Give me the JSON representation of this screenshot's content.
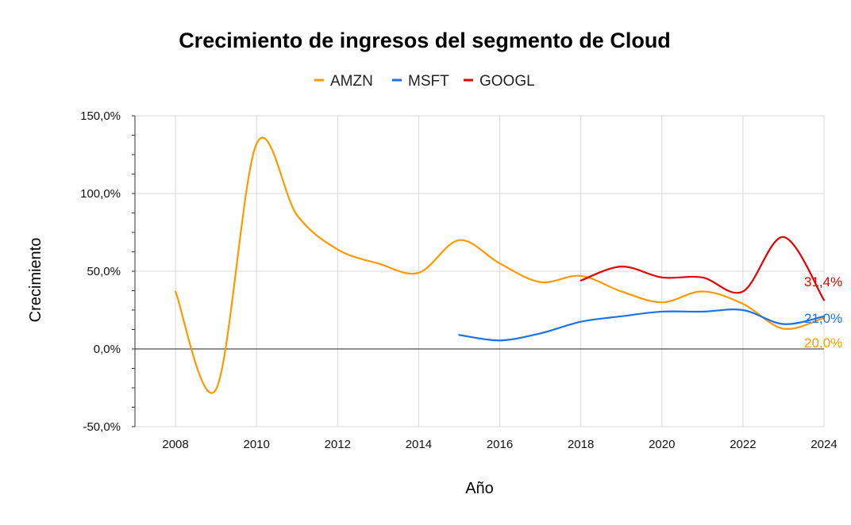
{
  "chart_data": {
    "type": "line",
    "title": "Crecimiento de ingresos del segmento de Cloud",
    "xlabel": "Año",
    "ylabel": "Crecimiento",
    "xlim": [
      2007,
      2024
    ],
    "ylim": [
      -50,
      150
    ],
    "x_ticks": [
      2008,
      2010,
      2012,
      2014,
      2016,
      2018,
      2020,
      2022,
      2024
    ],
    "y_ticks": [
      -50,
      0,
      50,
      100,
      150
    ],
    "y_tick_labels": [
      "-50,0%",
      "0,0%",
      "50,0%",
      "100,0%",
      "150,0%"
    ],
    "grid": true,
    "legend_position": "top-center",
    "series": [
      {
        "name": "AMZN",
        "color": "#FF9900",
        "x": [
          2008,
          2009,
          2010,
          2011,
          2012,
          2013,
          2014,
          2015,
          2016,
          2017,
          2018,
          2019,
          2020,
          2021,
          2022,
          2023,
          2024
        ],
        "values": [
          37,
          -26,
          132,
          86,
          64,
          55,
          49,
          70,
          55,
          43,
          47,
          37,
          30,
          37,
          29,
          13,
          20
        ],
        "end_label": "20,0%"
      },
      {
        "name": "MSFT",
        "color": "#1A73E8",
        "x": [
          2015,
          2016,
          2017,
          2018,
          2019,
          2020,
          2021,
          2022,
          2023,
          2024
        ],
        "values": [
          9,
          5.5,
          10,
          17.5,
          21,
          24,
          24,
          25,
          16,
          21
        ],
        "end_label": "21,0%"
      },
      {
        "name": "GOOGL",
        "color": "#E60000",
        "x": [
          2018,
          2019,
          2020,
          2021,
          2022,
          2023,
          2024
        ],
        "values": [
          44,
          53,
          46,
          46,
          37,
          72,
          31.4
        ],
        "end_label": "31,4%"
      }
    ]
  }
}
